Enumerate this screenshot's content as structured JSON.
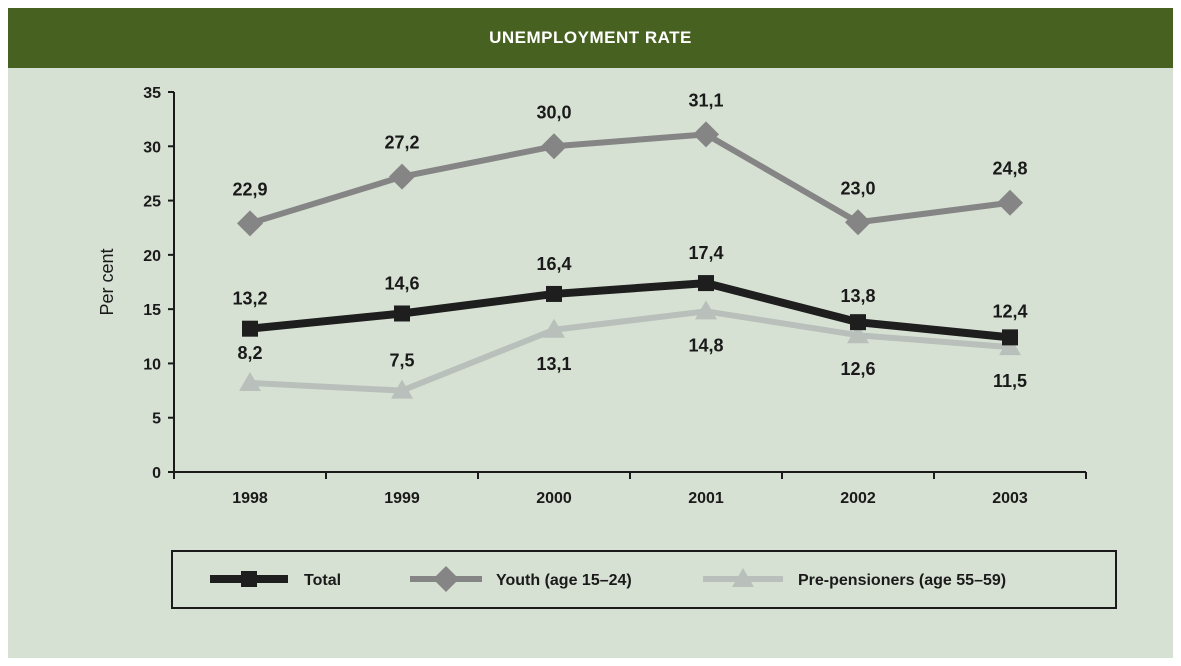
{
  "chart_data": {
    "type": "line",
    "title": "UNEMPLOYMENT RATE",
    "ylabel": "Per cent",
    "xlabel": "",
    "categories": [
      "1998",
      "1999",
      "2000",
      "2001",
      "2002",
      "2003"
    ],
    "ylim": [
      0,
      35
    ],
    "yticks": [
      "0",
      "5",
      "10",
      "15",
      "20",
      "25",
      "30",
      "35"
    ],
    "grid": false,
    "legend_position": "bottom",
    "series": [
      {
        "name": "Total",
        "values": [
          13.2,
          14.6,
          16.4,
          17.4,
          13.8,
          12.4
        ],
        "labels": [
          "13,2",
          "14,6",
          "16,4",
          "17,4",
          "13,8",
          "12,4"
        ],
        "color": "#1e1e1e",
        "marker": "square"
      },
      {
        "name": "Youth (age 15–24)",
        "values": [
          22.9,
          27.2,
          30.0,
          31.1,
          23.0,
          24.8
        ],
        "labels": [
          "22,9",
          "27,2",
          "30,0",
          "31,1",
          "23,0",
          "24,8"
        ],
        "color": "#858585",
        "marker": "diamond"
      },
      {
        "name": "Pre-pensioners (age 55–59)",
        "values": [
          8.2,
          7.5,
          13.1,
          14.8,
          12.6,
          11.5
        ],
        "labels": [
          "8,2",
          "7,5",
          "13,1",
          "14,8",
          "12,6",
          "11,5"
        ],
        "color": "#b9bfbb",
        "marker": "triangle"
      }
    ]
  }
}
